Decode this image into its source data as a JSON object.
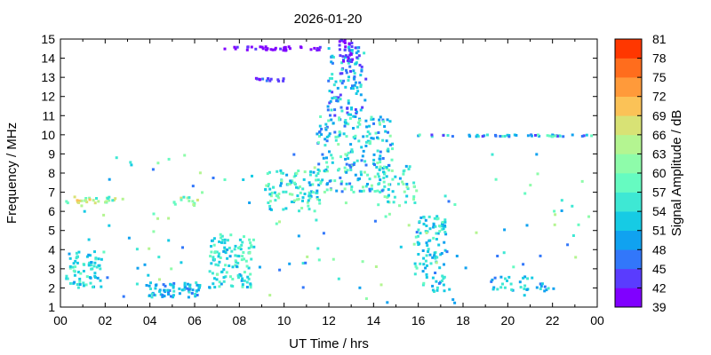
{
  "chart_data": {
    "type": "heatmap",
    "title": "2026-01-20",
    "xlabel": "UT Time / hrs",
    "ylabel": "Frequency / MHz",
    "colorbar_label": "Signal Amplitude / dB",
    "xlim": [
      0,
      24
    ],
    "ylim": [
      1,
      15
    ],
    "x_ticks": [
      "00",
      "02",
      "04",
      "06",
      "08",
      "10",
      "12",
      "14",
      "16",
      "18",
      "20",
      "22",
      "00"
    ],
    "y_ticks": [
      "1",
      "2",
      "3",
      "4",
      "5",
      "6",
      "7",
      "8",
      "9",
      "10",
      "11",
      "12",
      "13",
      "14",
      "15"
    ],
    "colorbar": {
      "range": [
        39,
        81
      ],
      "ticks": [
        "39",
        "42",
        "45",
        "48",
        "51",
        "54",
        "57",
        "60",
        "63",
        "66",
        "69",
        "72",
        "75",
        "78",
        "81"
      ],
      "colors": [
        "#8000ff",
        "#5a3cfe",
        "#3277fa",
        "#10a2f0",
        "#16cbe4",
        "#3ee8d4",
        "#66fbc1",
        "#8efcaa",
        "#b4f591",
        "#d8e275",
        "#fbc257",
        "#ff9a3a",
        "#ff6d1d",
        "#ff3700"
      ]
    },
    "clusters": [
      {
        "x": [
          0.2,
          2.4
        ],
        "y": [
          6.4,
          6.8
        ],
        "amp": [
          55,
          72
        ],
        "n": 26
      },
      {
        "x": [
          0.2,
          1.8
        ],
        "y": [
          2.0,
          3.9
        ],
        "amp": [
          49,
          58
        ],
        "n": 70
      },
      {
        "x": [
          3.9,
          6.2
        ],
        "y": [
          1.5,
          2.3
        ],
        "amp": [
          47,
          56
        ],
        "n": 70
      },
      {
        "x": [
          5.0,
          6.1
        ],
        "y": [
          6.3,
          6.8
        ],
        "amp": [
          55,
          68
        ],
        "n": 14
      },
      {
        "x": [
          6.6,
          8.6
        ],
        "y": [
          2.0,
          4.8
        ],
        "amp": [
          50,
          60
        ],
        "n": 120
      },
      {
        "x": [
          9.1,
          11.6
        ],
        "y": [
          6.0,
          8.2
        ],
        "amp": [
          50,
          62
        ],
        "n": 100
      },
      {
        "x": [
          11.4,
          14.8
        ],
        "y": [
          7.0,
          11.0
        ],
        "amp": [
          45,
          62
        ],
        "n": 220
      },
      {
        "x": [
          11.9,
          13.6
        ],
        "y": [
          11.0,
          14.6
        ],
        "amp": [
          42,
          57
        ],
        "n": 110
      },
      {
        "x": [
          12.4,
          13.0
        ],
        "y": [
          13.8,
          15.0
        ],
        "amp": [
          39,
          46
        ],
        "n": 30
      },
      {
        "x": [
          14.0,
          15.8
        ],
        "y": [
          6.2,
          8.4
        ],
        "amp": [
          50,
          62
        ],
        "n": 50
      },
      {
        "x": [
          15.8,
          17.2
        ],
        "y": [
          1.8,
          5.8
        ],
        "amp": [
          49,
          58
        ],
        "n": 100
      },
      {
        "x": [
          7.2,
          11.6
        ],
        "y": [
          14.4,
          14.6
        ],
        "amp": [
          39,
          43
        ],
        "n": 40
      },
      {
        "x": [
          8.6,
          10.1
        ],
        "y": [
          12.8,
          13.0
        ],
        "amp": [
          40,
          46
        ],
        "n": 14
      },
      {
        "x": [
          15.8,
          23.9
        ],
        "y": [
          9.9,
          10.0
        ],
        "amp": [
          42,
          60
        ],
        "n": 50
      },
      {
        "x": [
          19.2,
          22.0
        ],
        "y": [
          1.8,
          2.6
        ],
        "amp": [
          47,
          56
        ],
        "n": 35
      },
      {
        "x": [
          0.2,
          23.9
        ],
        "y": [
          1.2,
          9.0
        ],
        "amp": [
          45,
          65
        ],
        "n": 130
      }
    ]
  }
}
